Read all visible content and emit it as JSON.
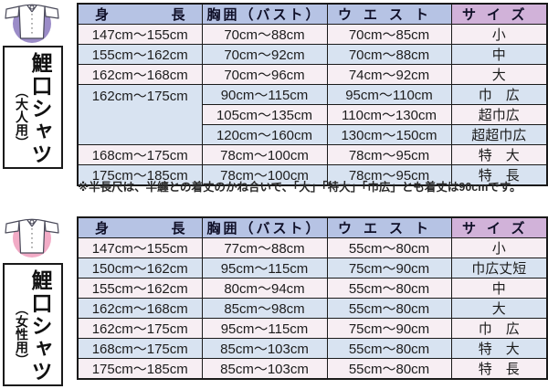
{
  "accent_colors": {
    "header_blue": "#b6c3e4",
    "header_purple": "#d1b2d9",
    "row_pink": "#f7eef3",
    "row_blue": "#d8e3f1",
    "table_border": "#1a1a1a",
    "adult_icon_circle": "#9b8cc8",
    "women_icon_circle": "#f2abc6"
  },
  "columns": [
    {
      "key": "height",
      "label": "身長"
    },
    {
      "key": "bust",
      "label": "胸囲（バスト）"
    },
    {
      "key": "waist",
      "label": "ウエスト"
    },
    {
      "key": "size",
      "label": "サイズ"
    }
  ],
  "adult": {
    "label_title": "鯉口シャツ",
    "label_sub": "（大人用）",
    "rows": [
      {
        "height": "147cm～155cm",
        "bust": "70cm～88cm",
        "waist": "70cm～85cm",
        "size": "小"
      },
      {
        "height": "155cm～162cm",
        "bust": "70cm～92cm",
        "waist": "70cm～88cm",
        "size": "中"
      },
      {
        "height": "162cm～168cm",
        "bust": "70cm～96cm",
        "waist": "74cm～92cm",
        "size": "大"
      },
      {
        "height": "162cm～175cm",
        "height_rowspan": 3,
        "bust": "90cm～115cm",
        "waist": "95cm～110cm",
        "size": "巾　広"
      },
      {
        "bust": "105cm～135cm",
        "waist": "110cm～130cm",
        "size": "超巾広"
      },
      {
        "bust": "120cm～160cm",
        "waist": "130cm～150cm",
        "size": "超超巾広"
      },
      {
        "height": "168cm～175cm",
        "bust": "78cm～100cm",
        "waist": "78cm～95cm",
        "size": "特　大"
      },
      {
        "height": "175cm～185cm",
        "bust": "78cm～100cm",
        "waist": "78cm～95cm",
        "size": "特　長"
      }
    ],
    "note": "※半長尺は、半纏との着丈のかね合いで、「大」「特大」「巾広」とも着丈は90cmです。"
  },
  "women": {
    "label_title": "鯉口シャツ",
    "label_sub": "（女性用）",
    "rows": [
      {
        "height": "147cm～155cm",
        "bust": "77cm～88cm",
        "waist": "55cm～80cm",
        "size": "小"
      },
      {
        "height": "150cm～162cm",
        "bust": "95cm～115cm",
        "waist": "75cm～90cm",
        "size": "巾広丈短"
      },
      {
        "height": "155cm～162cm",
        "bust": "80cm～94cm",
        "waist": "55cm～80cm",
        "size": "中"
      },
      {
        "height": "162cm～168cm",
        "bust": "85cm～98cm",
        "waist": "55cm～80cm",
        "size": "大"
      },
      {
        "height": "162cm～175cm",
        "bust": "95cm～115cm",
        "waist": "75cm～90cm",
        "size": "巾　広"
      },
      {
        "height": "168cm～175cm",
        "bust": "85cm～103cm",
        "waist": "55cm～80cm",
        "size": "特　大"
      },
      {
        "height": "175cm～185cm",
        "bust": "85cm～103cm",
        "waist": "55cm～80cm",
        "size": "特　長"
      }
    ]
  }
}
